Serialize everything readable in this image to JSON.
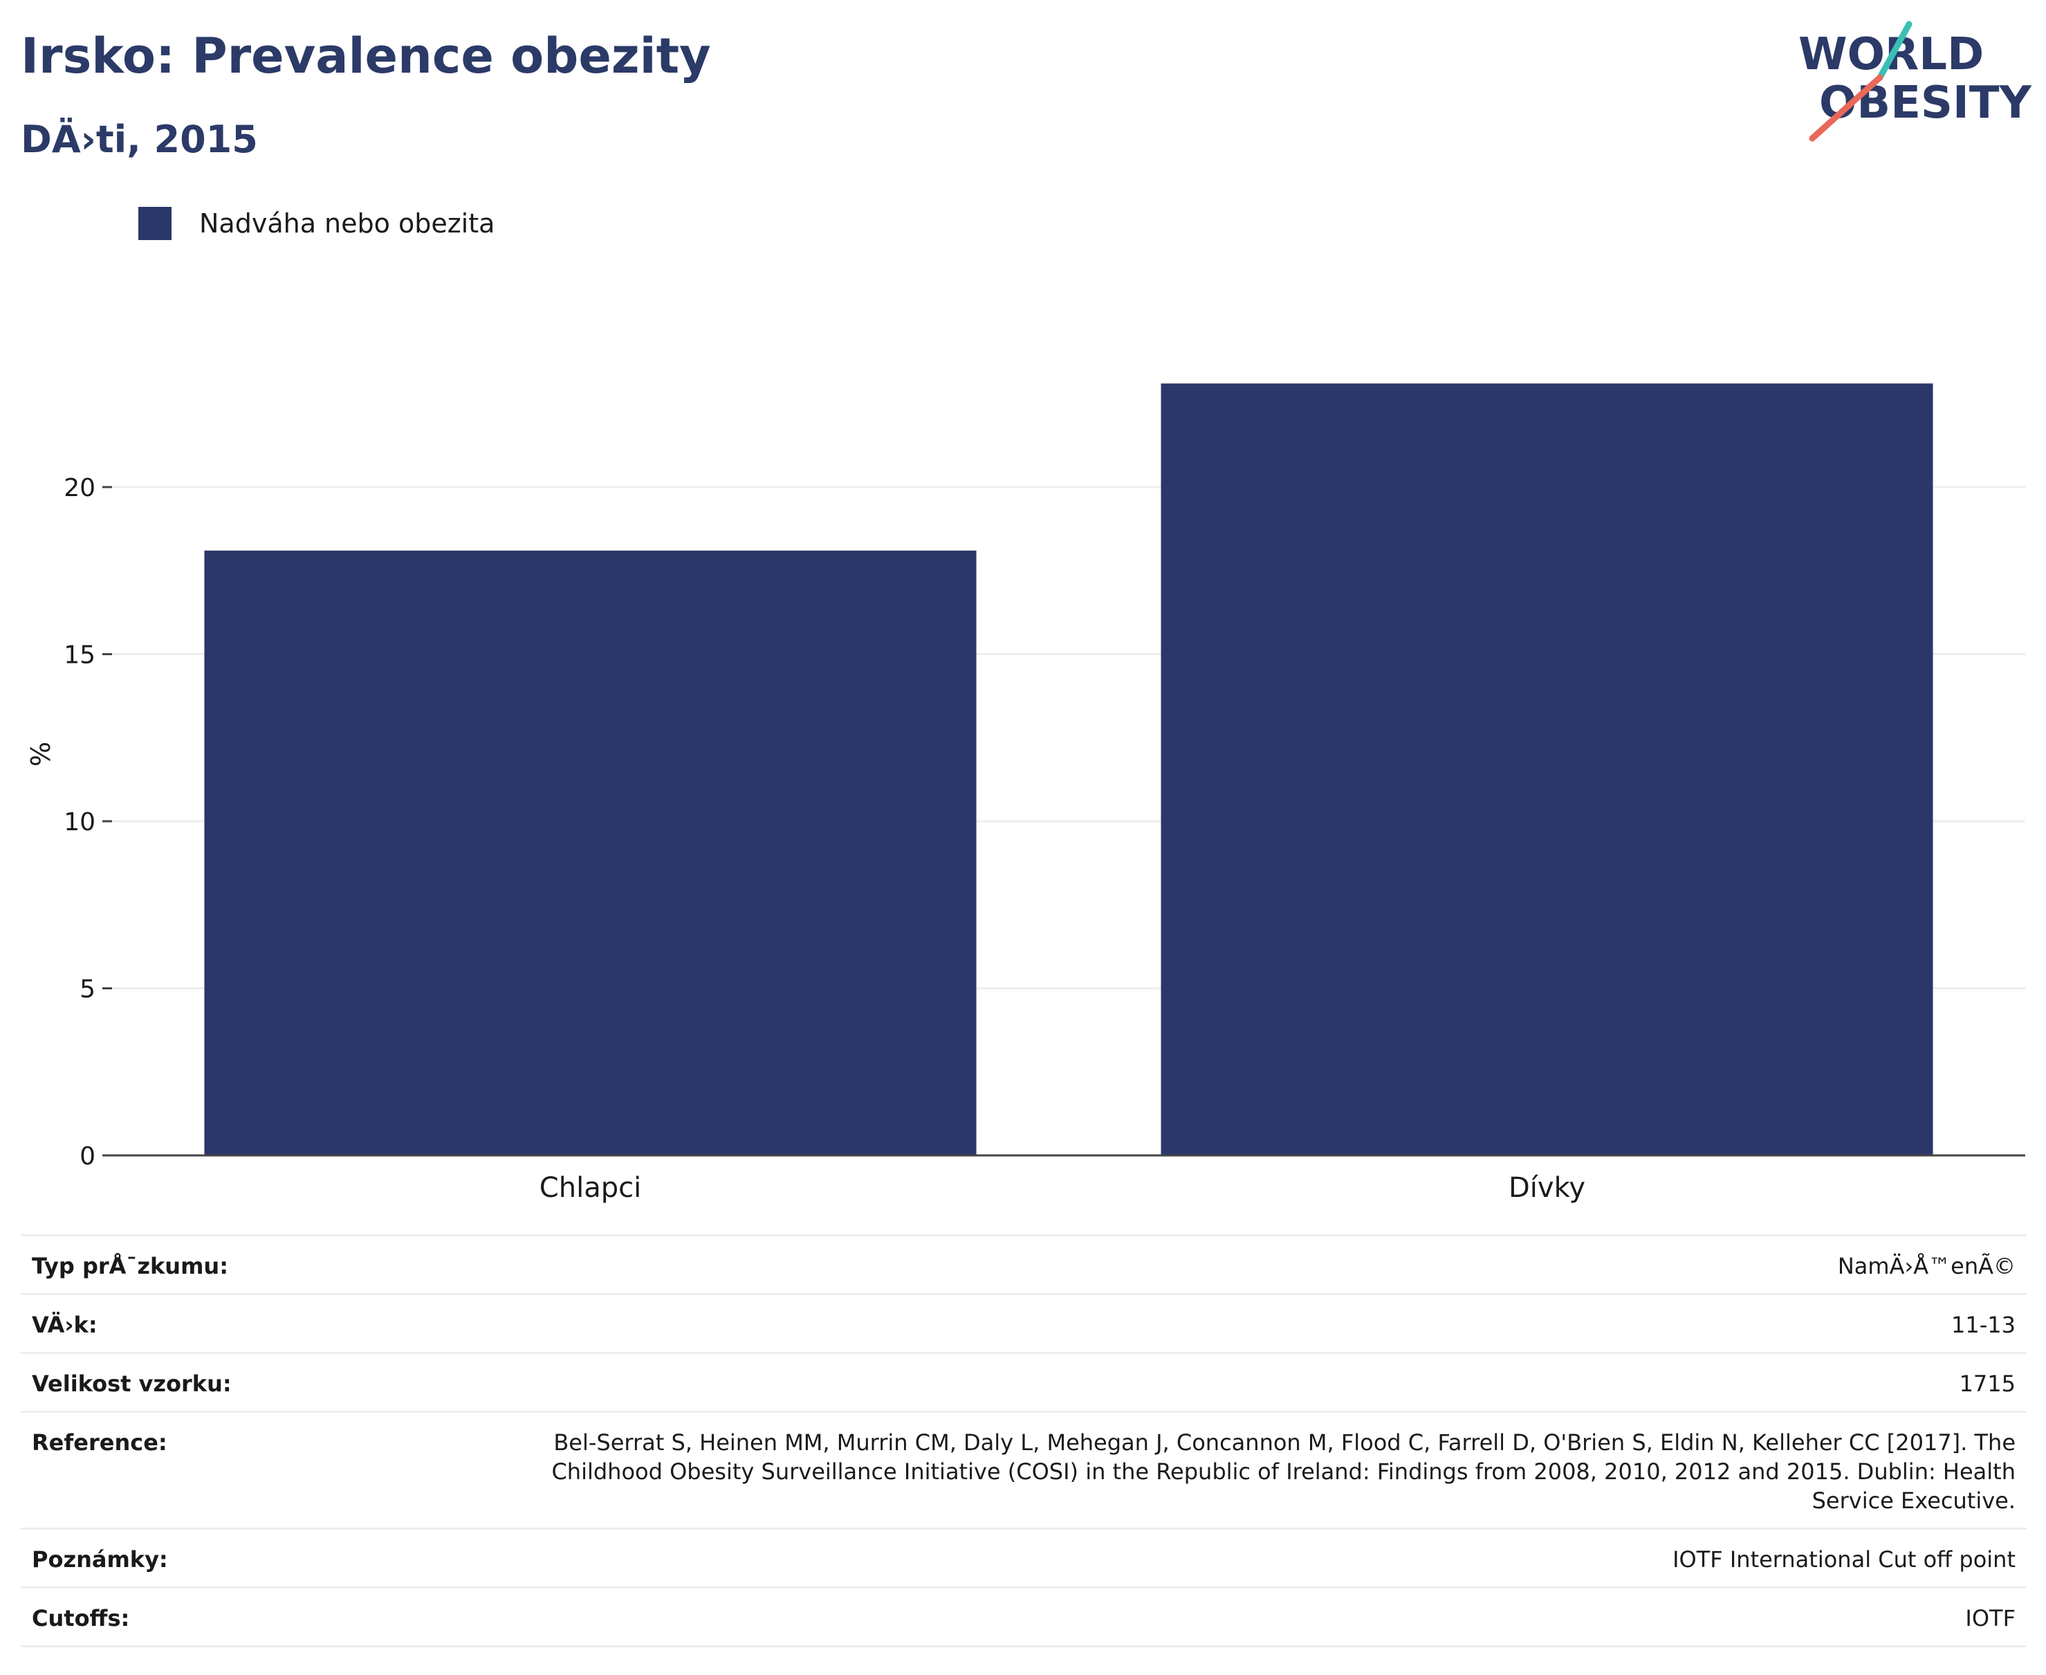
{
  "header": {
    "title": "Irsko: Prevalence obezity",
    "subtitle": "DÄ›ti, 2015"
  },
  "logo": {
    "line1": "WORLD",
    "line2": "OBESITY",
    "colors": {
      "text": "#2b3a67",
      "slash_top": "#3bbfb5",
      "slash_bottom": "#e8695a"
    }
  },
  "legend": {
    "items": [
      {
        "label": "Nadváha nebo obezita",
        "color": "#2b3768"
      }
    ]
  },
  "chart_data": {
    "type": "bar",
    "categories": [
      "Chlapci",
      "Dívky"
    ],
    "series": [
      {
        "name": "Nadváha nebo obezita",
        "values": [
          18.1,
          23.1
        ],
        "color": "#2b3768"
      }
    ],
    "ylabel": "%",
    "xlabel": "",
    "ylim": [
      0,
      25
    ],
    "yticks": [
      0,
      5,
      10,
      15,
      20
    ],
    "grid": true,
    "legend_position": "top-left"
  },
  "info": {
    "rows": [
      {
        "key": "Typ prÅ¯zkumu:",
        "value": "NamÄ›Å™enÃ©"
      },
      {
        "key": "VÄ›k:",
        "value": "11-13"
      },
      {
        "key": "Velikost vzorku:",
        "value": "1715"
      },
      {
        "key": "Reference:",
        "value": "Bel-Serrat S, Heinen MM, Murrin CM, Daly L, Mehegan J, Concannon M, Flood C, Farrell D, O'Brien S, Eldin N, Kelleher CC [2017]. The Childhood Obesity Surveillance Initiative (COSI) in the Republic of Ireland: Findings from 2008, 2010, 2012 and 2015. Dublin: Health Service Executive."
      },
      {
        "key": "Poznámky:",
        "value": "IOTF International Cut off point"
      },
      {
        "key": "Cutoffs:",
        "value": "IOTF"
      }
    ]
  }
}
